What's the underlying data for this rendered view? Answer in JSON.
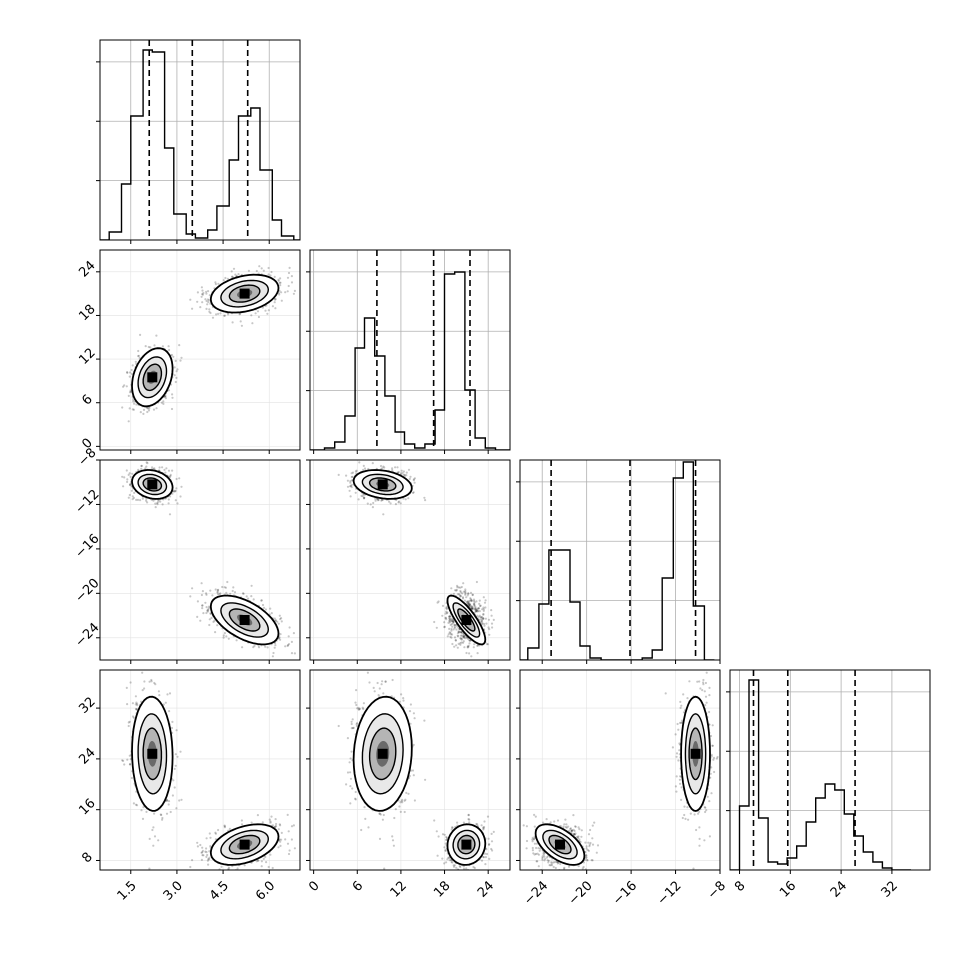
{
  "chart_data": {
    "type": "scatter",
    "kind": "corner-plot",
    "params": [
      {
        "range": [
          0.5,
          7.0
        ],
        "ticks": [
          1.5,
          3.0,
          4.5,
          6.0
        ],
        "tick_labels": [
          "1.5",
          "3.0",
          "4.5",
          "6.0"
        ]
      },
      {
        "range": [
          -0.5,
          27.0
        ],
        "ticks": [
          0,
          6,
          12,
          18,
          24
        ],
        "tick_labels": [
          "0",
          "6",
          "12",
          "18",
          "24"
        ]
      },
      {
        "range": [
          -26.0,
          -8.0
        ],
        "ticks": [
          -24,
          -20,
          -16,
          -12,
          -8
        ],
        "tick_labels": [
          "−24",
          "−20",
          "−16",
          "−12",
          "−8"
        ]
      },
      {
        "range": [
          6.5,
          38.0
        ],
        "ticks": [
          8,
          16,
          24,
          32
        ],
        "tick_labels": [
          "8",
          "16",
          "24",
          "32"
        ]
      }
    ],
    "quantiles": [
      [
        2.1,
        3.5,
        5.3
      ],
      [
        8.7,
        16.5,
        21.5
      ],
      [
        -23.2,
        -16.1,
        -10.2
      ],
      [
        10.2,
        15.6,
        26.2
      ]
    ],
    "hist_max": [
      0.95,
      0.95,
      0.95,
      0.95
    ],
    "histograms": [
      {
        "edges": [
          0.5,
          0.8,
          1.2,
          1.5,
          1.9,
          2.2,
          2.6,
          2.9,
          3.3,
          3.6,
          4.0,
          4.3,
          4.7,
          5.0,
          5.4,
          5.7,
          6.1,
          6.4,
          6.8,
          7.0
        ],
        "counts": [
          0.0,
          0.04,
          0.28,
          0.62,
          0.95,
          0.94,
          0.46,
          0.13,
          0.03,
          0.01,
          0.05,
          0.17,
          0.4,
          0.62,
          0.66,
          0.35,
          0.1,
          0.02,
          0.0
        ]
      },
      {
        "edges": [
          -0.5,
          1.5,
          2.9,
          4.3,
          5.7,
          7.0,
          8.4,
          9.8,
          11.2,
          12.5,
          13.9,
          15.3,
          16.7,
          18.0,
          19.4,
          20.8,
          22.2,
          23.6,
          25.0,
          27.0
        ],
        "counts": [
          0.0,
          0.01,
          0.04,
          0.17,
          0.51,
          0.66,
          0.47,
          0.27,
          0.09,
          0.03,
          0.01,
          0.03,
          0.2,
          0.88,
          0.89,
          0.3,
          0.06,
          0.01,
          0.0
        ]
      },
      {
        "edges": [
          -26.0,
          -25.3,
          -24.3,
          -23.4,
          -22.5,
          -21.5,
          -20.6,
          -19.7,
          -18.7,
          -17.8,
          -16.9,
          -15.9,
          -15.0,
          -14.1,
          -13.2,
          -12.2,
          -11.3,
          -10.4,
          -9.4,
          -8.5
        ],
        "counts": [
          0.0,
          0.06,
          0.28,
          0.55,
          0.55,
          0.29,
          0.07,
          0.01,
          0.0,
          0.0,
          0.0,
          0.0,
          0.01,
          0.05,
          0.41,
          0.91,
          0.99,
          0.27,
          0.0
        ]
      },
      {
        "edges": [
          6.5,
          8.0,
          9.5,
          11.0,
          12.5,
          14.0,
          15.5,
          17.0,
          18.5,
          20.0,
          21.5,
          23.0,
          24.5,
          26.0,
          27.5,
          29.0,
          30.5,
          32.0,
          33.5,
          35.0
        ],
        "counts": [
          0.0,
          0.32,
          0.95,
          0.26,
          0.04,
          0.03,
          0.06,
          0.12,
          0.24,
          0.36,
          0.43,
          0.4,
          0.28,
          0.17,
          0.09,
          0.04,
          0.01,
          0.0,
          0.0
        ]
      }
    ],
    "components": [
      {
        "mean": [
          2.2,
          9.5,
          -10.2,
          24.8
        ],
        "sd": [
          0.33,
          2.0,
          0.65,
          4.5
        ],
        "weight": 0.5
      },
      {
        "mean": [
          5.2,
          21.0,
          -22.4,
          10.5
        ],
        "sd": [
          0.55,
          1.3,
          1.1,
          1.6
        ],
        "weight": 0.5
      }
    ],
    "correlations": {
      "1-0": [
        0.3,
        0.3
      ],
      "2-0": [
        -0.2,
        -0.55
      ],
      "3-0": [
        -0.05,
        0.4
      ],
      "2-1": [
        -0.25,
        -0.8
      ],
      "3-1": [
        0.1,
        0.05
      ],
      "3-2": [
        0.0,
        -0.55
      ]
    },
    "grid": true,
    "legend": "none",
    "title": "",
    "xlabel": "",
    "ylabel": ""
  }
}
